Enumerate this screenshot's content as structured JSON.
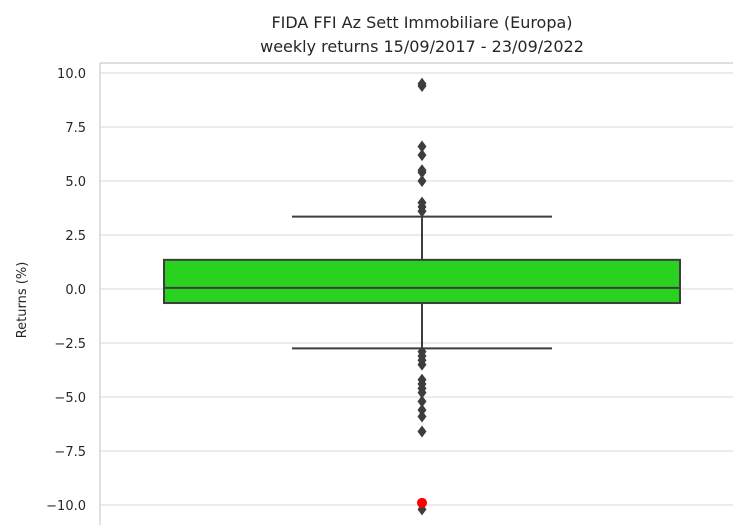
{
  "chart_data": {
    "type": "box",
    "title": "FIDA FFI Az Sett Immobiliare (Europa)",
    "subtitle": "weekly returns 15/09/2017 - 23/09/2022",
    "ylabel": "Returns (%)",
    "xlabel": "",
    "ylim": [
      -10.8,
      10.3
    ],
    "yticks": [
      10.0,
      7.5,
      5.0,
      2.5,
      0.0,
      -2.5,
      -5.0,
      -7.5,
      -10.0
    ],
    "ytick_labels": [
      "10.0",
      "7.5",
      "5.0",
      "2.5",
      "0.0",
      "−2.5",
      "−5.0",
      "−7.5",
      "−10.0"
    ],
    "grid": "horizontal",
    "box": {
      "q1": -0.65,
      "median": 0.05,
      "q3": 1.35,
      "whisker_low": -2.75,
      "whisker_high": 3.35,
      "fill_color": "#28d21f",
      "edge_color": "#3d3d3d"
    },
    "outliers": [
      9.4,
      9.5,
      6.6,
      6.2,
      5.5,
      5.4,
      5.0,
      4.0,
      3.8,
      3.6,
      -2.9,
      -3.1,
      -3.3,
      -3.5,
      -4.2,
      -4.4,
      -4.6,
      -4.8,
      -5.2,
      -5.6,
      -5.9,
      -6.6,
      -10.2
    ],
    "highlighted_points": [
      {
        "y": -9.9,
        "color": "#ff0000"
      }
    ]
  }
}
